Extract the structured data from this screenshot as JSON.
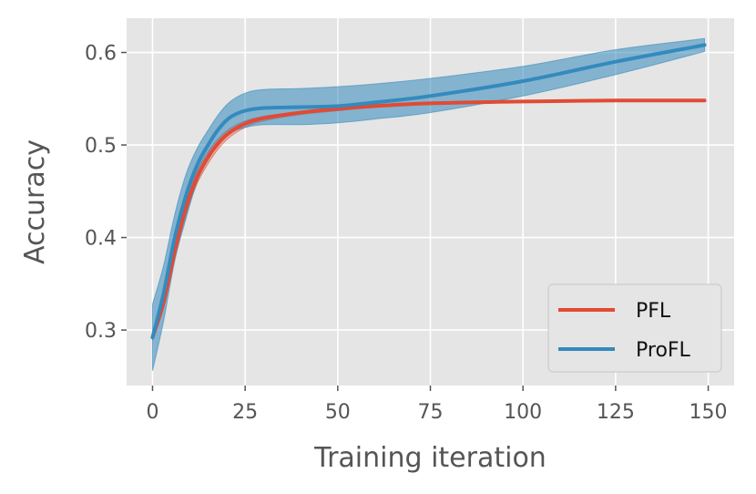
{
  "chart_data": {
    "type": "line",
    "title": "",
    "xlabel": "Training iteration",
    "ylabel": "Accuracy",
    "xlim": [
      -7,
      157
    ],
    "ylim": [
      0.24,
      0.637
    ],
    "xticks": [
      0,
      25,
      50,
      75,
      100,
      125,
      150
    ],
    "xtick_labels": [
      "0",
      "25",
      "50",
      "75",
      "100",
      "125",
      "150"
    ],
    "yticks": [
      0.3,
      0.4,
      0.5,
      0.6
    ],
    "ytick_labels": [
      "0.3",
      "0.4",
      "0.5",
      "0.6"
    ],
    "grid": true,
    "legend_position": "lower-right",
    "series": [
      {
        "name": "PFL",
        "color": "#E24A33",
        "x": [
          0,
          3,
          6,
          9,
          12,
          15,
          18,
          21,
          25,
          30,
          40,
          50,
          60,
          75,
          100,
          125,
          149
        ],
        "y": [
          0.292,
          0.33,
          0.385,
          0.432,
          0.465,
          0.487,
          0.503,
          0.514,
          0.523,
          0.529,
          0.535,
          0.539,
          0.542,
          0.545,
          0.547,
          0.548,
          0.548
        ],
        "upper": [
          0.295,
          0.335,
          0.393,
          0.44,
          0.472,
          0.493,
          0.508,
          0.518,
          0.526,
          0.531,
          0.536,
          0.54,
          0.543,
          0.546,
          0.548,
          0.549,
          0.549
        ],
        "lower": [
          0.289,
          0.325,
          0.378,
          0.424,
          0.458,
          0.48,
          0.497,
          0.509,
          0.519,
          0.526,
          0.533,
          0.537,
          0.541,
          0.544,
          0.546,
          0.547,
          0.547
        ]
      },
      {
        "name": "ProFL",
        "color": "#348ABD",
        "x": [
          0,
          3,
          6,
          9,
          12,
          15,
          18,
          21,
          25,
          30,
          40,
          50,
          60,
          75,
          100,
          125,
          149
        ],
        "y": [
          0.292,
          0.34,
          0.4,
          0.445,
          0.478,
          0.5,
          0.518,
          0.53,
          0.537,
          0.54,
          0.541,
          0.542,
          0.546,
          0.553,
          0.569,
          0.59,
          0.608
        ],
        "upper": [
          0.328,
          0.37,
          0.425,
          0.468,
          0.496,
          0.516,
          0.534,
          0.547,
          0.556,
          0.56,
          0.561,
          0.563,
          0.566,
          0.572,
          0.585,
          0.603,
          0.615
        ],
        "lower": [
          0.256,
          0.31,
          0.375,
          0.42,
          0.46,
          0.484,
          0.502,
          0.513,
          0.519,
          0.522,
          0.522,
          0.524,
          0.528,
          0.535,
          0.553,
          0.576,
          0.601
        ]
      }
    ]
  },
  "colors": {
    "plot_background": "#E5E5E5",
    "grid": "#FFFFFF",
    "text": "#555555"
  }
}
